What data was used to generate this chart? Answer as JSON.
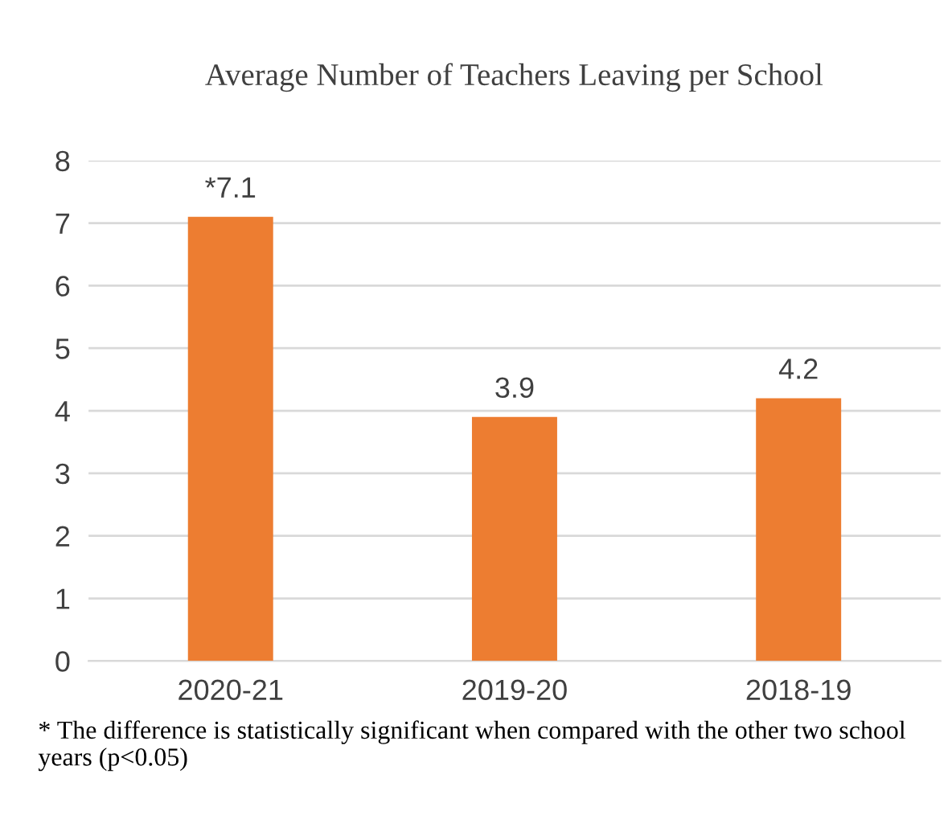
{
  "chart_data": {
    "type": "bar",
    "title": "Average Number of Teachers Leaving per School",
    "categories": [
      "2020-21",
      "2019-20",
      "2018-19"
    ],
    "values": [
      7.1,
      3.9,
      4.2
    ],
    "value_labels": [
      "*7.1",
      "3.9",
      "4.2"
    ],
    "color": "#ed7d31",
    "ylim": [
      0,
      8
    ],
    "yticks": [
      0,
      1,
      2,
      3,
      4,
      5,
      6,
      7,
      8
    ],
    "grid": "y",
    "annotations": [
      "* The difference is statistically significant when compared with the other two school years (p<0.05)"
    ]
  }
}
